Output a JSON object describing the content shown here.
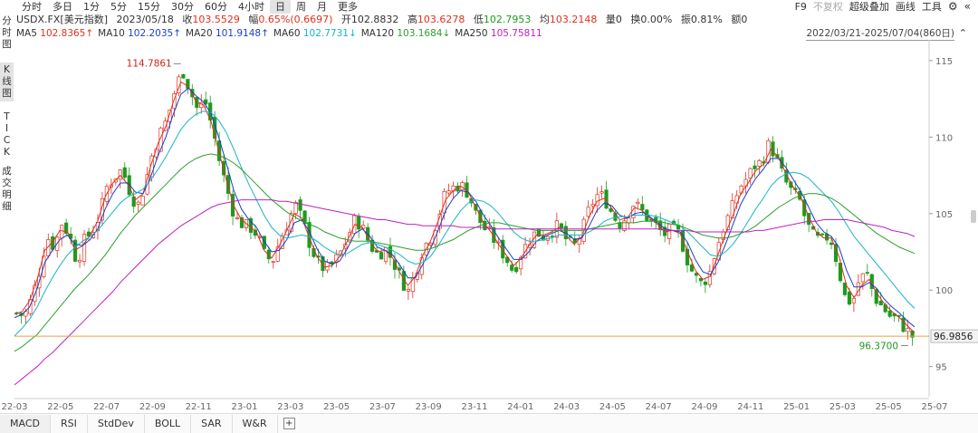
{
  "tabs": [
    "分时",
    "多日",
    "1分",
    "5分",
    "15分",
    "30分",
    "60分",
    "4小时",
    "日",
    "周",
    "月",
    "更多"
  ],
  "active_tab": "日",
  "top_right": {
    "f9": "F9",
    "no_adjust": "不复权",
    "overlay": "超级叠加",
    "draw": "画线",
    "tools": "工具",
    "settings_icon": "gear-icon",
    "collapse_icon": "double-chevron-left-icon"
  },
  "quote": {
    "symbol": "USDX.FX[美元指数]",
    "date": "2023/05/18",
    "close_label": "收",
    "close": "103.5529",
    "chg_label": "幅",
    "chg": "0.65%(0.6697)",
    "open_label": "开",
    "open": "102.8832",
    "high_label": "高",
    "high": "103.6278",
    "low_label": "低",
    "low": "102.7953",
    "avg_label": "均",
    "avg": "103.2148",
    "vol_label": "量",
    "vol": "0",
    "turnover_label": "换",
    "turnover": "0.00%",
    "amp_label": "振",
    "amp": "0.81%",
    "amount_label": "额",
    "amount": "0"
  },
  "ma": [
    {
      "label": "MA5",
      "value": "102.8365↑",
      "color": "#e0301e"
    },
    {
      "label": "MA10",
      "value": "102.2035↑",
      "color": "#1a3fc8"
    },
    {
      "label": "MA20",
      "value": "101.9148↑",
      "color": "#1a3fc8"
    },
    {
      "label": "MA60",
      "value": "102.7731↓",
      "color": "#18b4c8"
    },
    {
      "label": "MA120",
      "value": "103.1684↓",
      "color": "#2ca02c"
    },
    {
      "label": "MA250",
      "value": "105.75811",
      "color": "#c020c0"
    }
  ],
  "range": "2022/03/21-2025/07/04(860日)",
  "left_nav": [
    "分时图",
    "K线图",
    "TICK",
    "成交明细"
  ],
  "bottom_tabs": [
    "MACD",
    "RSI",
    "StdDev",
    "BOLL",
    "SAR",
    "W&R"
  ],
  "chart_data": {
    "type": "candlestick",
    "y_ticks": [
      115,
      110,
      105,
      100,
      95
    ],
    "ylim": [
      93.5,
      116
    ],
    "x_labels": [
      "22-03",
      "22-05",
      "22-07",
      "22-09",
      "22-11",
      "23-01",
      "23-03",
      "23-05",
      "23-07",
      "23-09",
      "23-11",
      "24-01",
      "24-03",
      "24-05",
      "24-07",
      "24-09",
      "24-11",
      "25-01",
      "25-03",
      "25-05",
      "25-07"
    ],
    "max_label": "114.7861",
    "min_label": "96.3700",
    "last_price": "96.9856",
    "price_path": [
      98.5,
      98.3,
      99.5,
      101.2,
      103.5,
      102.8,
      104.4,
      103.6,
      101.8,
      103.3,
      103.8,
      104.9,
      106.8,
      107.4,
      107.9,
      106.5,
      105.4,
      106.8,
      108.9,
      110.2,
      111.2,
      113.0,
      114.4,
      113.1,
      111.8,
      112.4,
      110.6,
      108.3,
      106.5,
      104.7,
      104.3,
      104.1,
      103.6,
      102.2,
      101.9,
      103.3,
      104.4,
      105.6,
      104.5,
      102.9,
      101.8,
      101.3,
      101.7,
      102.4,
      103.5,
      104.7,
      104.0,
      102.9,
      102.3,
      102.7,
      101.9,
      100.8,
      99.9,
      101.2,
      102.8,
      103.4,
      104.8,
      106.4,
      106.7,
      106.9,
      106.3,
      105.0,
      104.1,
      103.6,
      102.8,
      102.1,
      101.2,
      102.4,
      103.2,
      103.8,
      103.5,
      103.9,
      104.2,
      103.3,
      102.8,
      103.7,
      105.2,
      106.2,
      106.1,
      105.1,
      104.3,
      104.8,
      105.7,
      105.2,
      104.6,
      104.2,
      103.6,
      104.0,
      103.7,
      102.1,
      100.9,
      100.4,
      101.0,
      102.8,
      104.2,
      105.3,
      106.7,
      107.3,
      108.1,
      108.4,
      109.6,
      108.5,
      107.2,
      106.4,
      105.9,
      104.3,
      103.4,
      103.2,
      103.6,
      101.8,
      99.6,
      99.1,
      100.8,
      101.0,
      99.5,
      98.9,
      98.3,
      98.1,
      97.5,
      96.98
    ],
    "ma5": [
      98.4,
      98.6,
      99.3,
      100.7,
      102.6,
      103.1,
      103.9,
      103.8,
      102.6,
      102.9,
      103.6,
      104.5,
      106.1,
      107.0,
      107.5,
      106.9,
      105.9,
      106.3,
      108.1,
      109.6,
      110.7,
      112.3,
      113.6,
      113.3,
      112.3,
      112.1,
      111.0,
      109.1,
      107.2,
      105.5,
      104.6,
      104.2,
      103.8,
      102.6,
      102.1,
      102.9,
      103.9,
      105.0,
      104.7,
      103.4,
      102.2,
      101.5,
      101.6,
      102.2,
      103.2,
      104.3,
      104.1,
      103.2,
      102.5,
      102.6,
      102.1,
      101.1,
      100.3,
      100.9,
      102.3,
      103.2,
      104.5,
      105.9,
      106.5,
      106.8,
      106.4,
      105.4,
      104.4,
      103.8,
      103.0,
      102.3,
      101.6,
      102.1,
      102.9,
      103.6,
      103.6,
      103.8,
      104.1,
      103.5,
      103.0,
      103.5,
      104.8,
      105.8,
      106.0,
      105.3,
      104.6,
      104.7,
      105.4,
      105.2,
      104.7,
      104.3,
      103.8,
      103.9,
      103.7,
      102.5,
      101.3,
      100.7,
      100.9,
      102.3,
      103.7,
      104.9,
      106.3,
      107.0,
      107.8,
      108.2,
      109.2,
      108.7,
      107.6,
      106.7,
      106.0,
      104.8,
      103.8,
      103.4,
      103.4,
      102.2,
      100.3,
      99.5,
      100.3,
      100.7,
      99.8,
      99.1,
      98.6,
      98.2,
      97.7,
      97.2
    ],
    "ma10": [
      98.2,
      98.4,
      98.9,
      100.1,
      101.8,
      102.6,
      103.3,
      103.6,
      103.0,
      102.9,
      103.3,
      104.0,
      105.3,
      106.3,
      107.0,
      107.0,
      106.4,
      106.3,
      107.4,
      108.8,
      110.0,
      111.5,
      112.8,
      113.2,
      112.7,
      112.3,
      111.5,
      110.0,
      108.3,
      106.5,
      105.3,
      104.6,
      104.1,
      103.2,
      102.5,
      102.6,
      103.3,
      104.4,
      104.6,
      103.8,
      102.7,
      101.9,
      101.7,
      101.9,
      102.7,
      103.7,
      104.0,
      103.5,
      102.8,
      102.6,
      102.3,
      101.6,
      100.8,
      100.8,
      101.7,
      102.7,
      103.9,
      105.2,
      106.0,
      106.5,
      106.4,
      105.8,
      104.9,
      104.2,
      103.4,
      102.7,
      102.0,
      102.0,
      102.5,
      103.2,
      103.5,
      103.7,
      103.9,
      103.7,
      103.3,
      103.4,
      104.2,
      105.2,
      105.7,
      105.5,
      104.9,
      104.7,
      105.0,
      105.1,
      104.8,
      104.4,
      104.0,
      103.9,
      103.8,
      103.1,
      102.0,
      101.2,
      101.0,
      101.8,
      103.0,
      104.3,
      105.6,
      106.5,
      107.3,
      107.9,
      108.6,
      108.6,
      108.0,
      107.2,
      106.4,
      105.4,
      104.4,
      103.8,
      103.5,
      102.8,
      101.3,
      100.2,
      100.2,
      100.5,
      100.1,
      99.4,
      98.9,
      98.5,
      98.0,
      97.6
    ],
    "ma60": [
      97.0,
      97.5,
      98.1,
      98.9,
      99.9,
      100.8,
      101.6,
      102.3,
      102.8,
      103.2,
      103.5,
      103.9,
      104.5,
      105.1,
      105.7,
      106.1,
      106.3,
      106.6,
      107.2,
      107.9,
      108.7,
      109.6,
      110.5,
      111.1,
      111.5,
      111.7,
      111.6,
      111.1,
      110.3,
      109.2,
      108.0,
      106.9,
      105.9,
      104.9,
      104.1,
      103.6,
      103.4,
      103.5,
      103.6,
      103.5,
      103.2,
      102.8,
      102.5,
      102.3,
      102.4,
      102.7,
      103.0,
      103.1,
      103.0,
      102.8,
      102.6,
      102.3,
      101.9,
      101.7,
      101.8,
      102.2,
      102.9,
      103.7,
      104.5,
      105.2,
      105.7,
      105.9,
      105.8,
      105.5,
      105.0,
      104.4,
      103.8,
      103.4,
      103.2,
      103.2,
      103.3,
      103.4,
      103.6,
      103.6,
      103.6,
      103.6,
      103.8,
      104.1,
      104.5,
      104.7,
      104.8,
      104.8,
      104.9,
      104.9,
      104.9,
      104.8,
      104.6,
      104.4,
      104.2,
      103.8,
      103.3,
      102.8,
      102.3,
      102.2,
      102.5,
      103.0,
      103.7,
      104.5,
      105.3,
      106.0,
      106.8,
      107.3,
      107.6,
      107.7,
      107.6,
      107.3,
      106.8,
      106.3,
      105.8,
      105.1,
      104.3,
      103.5,
      102.9,
      102.3,
      101.7,
      101.1,
      100.5,
      99.9,
      99.3,
      98.8
    ],
    "ma120": [
      96.0,
      96.3,
      96.7,
      97.1,
      97.7,
      98.3,
      98.9,
      99.5,
      100.1,
      100.6,
      101.1,
      101.7,
      102.3,
      103.0,
      103.7,
      104.3,
      104.9,
      105.4,
      105.9,
      106.4,
      106.9,
      107.4,
      107.9,
      108.3,
      108.6,
      108.8,
      108.9,
      108.8,
      108.6,
      108.3,
      107.9,
      107.4,
      106.9,
      106.4,
      105.9,
      105.5,
      105.1,
      104.8,
      104.5,
      104.3,
      104.1,
      103.8,
      103.6,
      103.4,
      103.3,
      103.2,
      103.2,
      103.2,
      103.1,
      103.0,
      102.9,
      102.8,
      102.7,
      102.6,
      102.6,
      102.7,
      102.9,
      103.1,
      103.3,
      103.6,
      103.9,
      104.1,
      104.3,
      104.4,
      104.4,
      104.3,
      104.2,
      104.1,
      104.0,
      103.9,
      103.9,
      103.9,
      103.9,
      103.9,
      103.9,
      103.9,
      104.0,
      104.1,
      104.2,
      104.3,
      104.4,
      104.4,
      104.4,
      104.5,
      104.5,
      104.5,
      104.4,
      104.3,
      104.2,
      104.0,
      103.8,
      103.6,
      103.5,
      103.4,
      103.4,
      103.5,
      103.7,
      103.9,
      104.2,
      104.6,
      105.0,
      105.4,
      105.7,
      106.0,
      106.2,
      106.3,
      106.3,
      106.2,
      106.0,
      105.7,
      105.3,
      104.9,
      104.5,
      104.1,
      103.7,
      103.4,
      103.1,
      102.8,
      102.6,
      102.4
    ],
    "ma250": [
      93.8,
      94.2,
      94.6,
      95.0,
      95.5,
      95.9,
      96.4,
      96.9,
      97.4,
      97.9,
      98.4,
      98.9,
      99.4,
      99.9,
      100.5,
      101.0,
      101.5,
      102.0,
      102.5,
      103.0,
      103.4,
      103.8,
      104.2,
      104.5,
      104.8,
      105.1,
      105.4,
      105.6,
      105.7,
      105.8,
      105.9,
      105.9,
      105.9,
      105.9,
      105.9,
      105.8,
      105.8,
      105.7,
      105.6,
      105.5,
      105.4,
      105.3,
      105.2,
      105.1,
      105.0,
      104.9,
      104.8,
      104.7,
      104.6,
      104.6,
      104.5,
      104.4,
      104.3,
      104.3,
      104.2,
      104.2,
      104.2,
      104.2,
      104.2,
      104.1,
      104.1,
      104.1,
      104.1,
      104.0,
      104.0,
      104.0,
      104.0,
      104.0,
      104.0,
      104.0,
      104.0,
      104.0,
      104.0,
      104.0,
      104.0,
      104.0,
      104.0,
      104.0,
      104.0,
      104.0,
      104.0,
      104.0,
      104.0,
      104.0,
      104.0,
      104.0,
      103.9,
      103.9,
      103.9,
      103.9,
      103.8,
      103.8,
      103.8,
      103.8,
      103.8,
      103.8,
      103.8,
      103.8,
      103.9,
      103.9,
      104.0,
      104.1,
      104.2,
      104.3,
      104.4,
      104.5,
      104.5,
      104.6,
      104.6,
      104.6,
      104.6,
      104.5,
      104.4,
      104.3,
      104.2,
      104.1,
      103.9,
      103.8,
      103.7,
      103.5
    ]
  }
}
